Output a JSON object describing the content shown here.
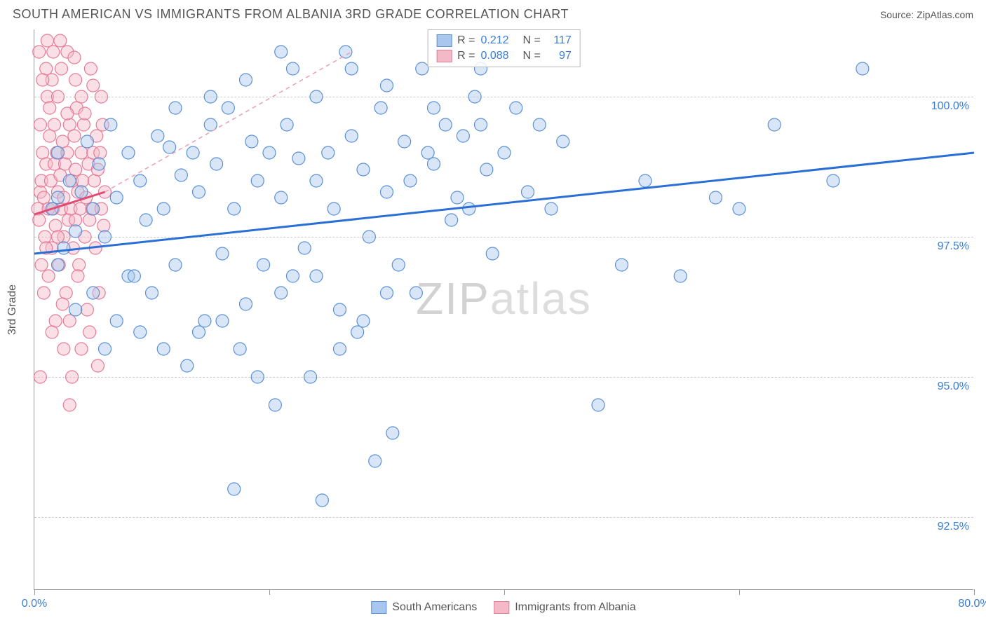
{
  "header": {
    "title": "SOUTH AMERICAN VS IMMIGRANTS FROM ALBANIA 3RD GRADE CORRELATION CHART",
    "source": "Source: ZipAtlas.com"
  },
  "chart": {
    "type": "scatter",
    "y_axis_label": "3rd Grade",
    "xlim": [
      0,
      80
    ],
    "ylim": [
      91.2,
      101.2
    ],
    "ytick_values": [
      92.5,
      95.0,
      97.5,
      100.0
    ],
    "ytick_labels": [
      "92.5%",
      "95.0%",
      "97.5%",
      "100.0%"
    ],
    "xtick_values": [
      0,
      20,
      40,
      60,
      80
    ],
    "xtick_labels": [
      "0.0%",
      "",
      "",
      "",
      "80.0%"
    ],
    "grid_color": "#cccccc",
    "axis_color": "#999999",
    "background_color": "#ffffff",
    "watermark": "ZIPatlas",
    "marker_radius": 9,
    "marker_opacity": 0.45,
    "series": [
      {
        "name": "South Americans",
        "color_fill": "#a9c7ee",
        "color_stroke": "#5a8fd6",
        "r_value": "0.212",
        "n_value": "117",
        "regression": {
          "x1": 0,
          "y1": 97.2,
          "x2": 80,
          "y2": 99.0,
          "stroke": "#2a6fd6",
          "width": 3,
          "dash": ""
        },
        "extrapolation": null,
        "points": [
          [
            1.5,
            98.0
          ],
          [
            2.0,
            98.2
          ],
          [
            2.5,
            97.3
          ],
          [
            2.0,
            99.0
          ],
          [
            3.0,
            98.5
          ],
          [
            3.5,
            97.6
          ],
          [
            4.0,
            98.3
          ],
          [
            4.5,
            99.2
          ],
          [
            2.0,
            97.0
          ],
          [
            5.0,
            98.0
          ],
          [
            5.5,
            98.8
          ],
          [
            6.0,
            97.5
          ],
          [
            6.5,
            99.5
          ],
          [
            7.0,
            98.2
          ],
          [
            8.0,
            96.8
          ],
          [
            8.0,
            99.0
          ],
          [
            9.0,
            98.5
          ],
          [
            9.5,
            97.8
          ],
          [
            10.0,
            96.5
          ],
          [
            10.5,
            99.3
          ],
          [
            11.0,
            98.0
          ],
          [
            11.5,
            99.1
          ],
          [
            12.0,
            97.0
          ],
          [
            12.5,
            98.6
          ],
          [
            13.0,
            95.2
          ],
          [
            13.5,
            99.0
          ],
          [
            14.0,
            98.3
          ],
          [
            14.5,
            96.0
          ],
          [
            15.0,
            99.5
          ],
          [
            15.5,
            98.8
          ],
          [
            16.0,
            97.2
          ],
          [
            16.5,
            99.8
          ],
          [
            17.0,
            98.0
          ],
          [
            17.5,
            95.5
          ],
          [
            18.0,
            96.3
          ],
          [
            18.5,
            99.2
          ],
          [
            19.0,
            98.5
          ],
          [
            19.5,
            97.0
          ],
          [
            20.0,
            99.0
          ],
          [
            20.5,
            94.5
          ],
          [
            21.0,
            98.2
          ],
          [
            21.5,
            99.5
          ],
          [
            22.0,
            96.8
          ],
          [
            22.5,
            98.9
          ],
          [
            23.0,
            97.3
          ],
          [
            23.5,
            95.0
          ],
          [
            24.0,
            98.5
          ],
          [
            24.5,
            92.8
          ],
          [
            25.0,
            99.0
          ],
          [
            25.5,
            98.0
          ],
          [
            26.0,
            96.2
          ],
          [
            26.5,
            100.8
          ],
          [
            27.0,
            99.3
          ],
          [
            27.5,
            95.8
          ],
          [
            28.0,
            98.7
          ],
          [
            28.5,
            97.5
          ],
          [
            29.0,
            93.5
          ],
          [
            29.5,
            99.8
          ],
          [
            30.0,
            98.3
          ],
          [
            30.5,
            94.0
          ],
          [
            31.0,
            97.0
          ],
          [
            31.5,
            99.2
          ],
          [
            32.0,
            98.5
          ],
          [
            32.5,
            96.5
          ],
          [
            33.0,
            100.5
          ],
          [
            33.5,
            99.0
          ],
          [
            34.0,
            98.8
          ],
          [
            17.0,
            93.0
          ],
          [
            35.0,
            99.5
          ],
          [
            35.5,
            97.8
          ],
          [
            36.0,
            98.2
          ],
          [
            36.5,
            99.3
          ],
          [
            37.0,
            98.0
          ],
          [
            37.5,
            100.0
          ],
          [
            38.0,
            99.5
          ],
          [
            38.5,
            98.7
          ],
          [
            39.0,
            97.2
          ],
          [
            40.0,
            99.0
          ],
          [
            41.0,
            99.8
          ],
          [
            42.0,
            98.3
          ],
          [
            43.0,
            99.5
          ],
          [
            44.0,
            98.0
          ],
          [
            45.0,
            99.2
          ],
          [
            22.0,
            100.5
          ],
          [
            48.0,
            94.5
          ],
          [
            50.0,
            97.0
          ],
          [
            52.0,
            98.5
          ],
          [
            55.0,
            96.8
          ],
          [
            58.0,
            98.2
          ],
          [
            60.0,
            98.0
          ],
          [
            63.0,
            99.5
          ],
          [
            68.0,
            98.5
          ],
          [
            11.0,
            95.5
          ],
          [
            14.0,
            95.8
          ],
          [
            16.0,
            96.0
          ],
          [
            19.0,
            95.0
          ],
          [
            21.0,
            96.5
          ],
          [
            24.0,
            96.8
          ],
          [
            26.0,
            95.5
          ],
          [
            28.0,
            96.0
          ],
          [
            30.0,
            96.5
          ],
          [
            5.0,
            96.5
          ],
          [
            7.0,
            96.0
          ],
          [
            9.0,
            95.8
          ],
          [
            70.5,
            100.5
          ],
          [
            3.5,
            96.2
          ],
          [
            6.0,
            95.5
          ],
          [
            8.5,
            96.8
          ],
          [
            12.0,
            99.8
          ],
          [
            15.0,
            100.0
          ],
          [
            18.0,
            100.3
          ],
          [
            21.0,
            100.8
          ],
          [
            24.0,
            100.0
          ],
          [
            27.0,
            100.5
          ],
          [
            30.0,
            100.2
          ],
          [
            34.0,
            99.8
          ],
          [
            38.0,
            100.5
          ]
        ]
      },
      {
        "name": "Immigrants from Albania",
        "color_fill": "#f4b9c7",
        "color_stroke": "#e67a96",
        "r_value": "0.088",
        "n_value": "97",
        "regression": {
          "x1": 0,
          "y1": 97.9,
          "x2": 6,
          "y2": 98.3,
          "stroke": "#e14b73",
          "width": 3,
          "dash": ""
        },
        "extrapolation": {
          "x1": 6,
          "y1": 98.3,
          "x2": 27,
          "y2": 100.8,
          "stroke": "#e9a0b3",
          "width": 1.5,
          "dash": "6,5"
        },
        "points": [
          [
            0.3,
            98.0
          ],
          [
            0.5,
            98.3
          ],
          [
            0.4,
            97.8
          ],
          [
            0.6,
            98.5
          ],
          [
            0.7,
            99.0
          ],
          [
            0.8,
            98.2
          ],
          [
            0.5,
            99.5
          ],
          [
            0.9,
            97.5
          ],
          [
            1.0,
            98.8
          ],
          [
            1.1,
            100.0
          ],
          [
            0.6,
            97.0
          ],
          [
            1.2,
            98.0
          ],
          [
            1.3,
            99.3
          ],
          [
            1.0,
            100.5
          ],
          [
            1.4,
            98.5
          ],
          [
            1.5,
            97.3
          ],
          [
            1.3,
            99.8
          ],
          [
            1.6,
            98.0
          ],
          [
            1.7,
            98.8
          ],
          [
            1.5,
            100.3
          ],
          [
            1.8,
            97.7
          ],
          [
            1.9,
            99.0
          ],
          [
            2.0,
            98.3
          ],
          [
            1.7,
            99.5
          ],
          [
            2.1,
            97.0
          ],
          [
            2.2,
            98.6
          ],
          [
            2.0,
            100.0
          ],
          [
            2.3,
            98.0
          ],
          [
            2.4,
            99.2
          ],
          [
            2.5,
            97.5
          ],
          [
            2.3,
            100.5
          ],
          [
            2.6,
            98.8
          ],
          [
            2.7,
            96.5
          ],
          [
            2.8,
            99.0
          ],
          [
            2.5,
            98.2
          ],
          [
            2.9,
            97.8
          ],
          [
            3.0,
            99.5
          ],
          [
            3.1,
            98.0
          ],
          [
            2.8,
            100.8
          ],
          [
            3.2,
            98.5
          ],
          [
            3.3,
            97.3
          ],
          [
            3.4,
            99.3
          ],
          [
            3.0,
            96.0
          ],
          [
            3.5,
            98.7
          ],
          [
            3.6,
            99.8
          ],
          [
            3.7,
            98.3
          ],
          [
            3.5,
            100.3
          ],
          [
            3.8,
            97.0
          ],
          [
            3.9,
            98.0
          ],
          [
            4.0,
            99.0
          ],
          [
            3.7,
            96.8
          ],
          [
            4.1,
            98.5
          ],
          [
            4.2,
            99.5
          ],
          [
            4.0,
            100.0
          ],
          [
            4.3,
            97.5
          ],
          [
            4.4,
            98.2
          ],
          [
            4.5,
            96.2
          ],
          [
            4.6,
            98.8
          ],
          [
            4.3,
            99.7
          ],
          [
            4.7,
            97.8
          ],
          [
            4.8,
            100.5
          ],
          [
            4.9,
            98.0
          ],
          [
            5.0,
            99.0
          ],
          [
            4.7,
            95.8
          ],
          [
            5.1,
            98.5
          ],
          [
            5.2,
            97.3
          ],
          [
            5.3,
            99.3
          ],
          [
            5.0,
            100.2
          ],
          [
            5.4,
            98.7
          ],
          [
            5.5,
            96.5
          ],
          [
            5.6,
            99.0
          ],
          [
            5.7,
            98.0
          ],
          [
            5.4,
            95.2
          ],
          [
            5.8,
            99.5
          ],
          [
            5.9,
            97.7
          ],
          [
            6.0,
            98.3
          ],
          [
            5.7,
            100.0
          ],
          [
            3.0,
            94.5
          ],
          [
            0.8,
            96.5
          ],
          [
            1.2,
            96.8
          ],
          [
            1.8,
            96.0
          ],
          [
            2.4,
            96.3
          ],
          [
            3.2,
            95.0
          ],
          [
            4.0,
            95.5
          ],
          [
            0.5,
            95.0
          ],
          [
            1.0,
            97.3
          ],
          [
            2.0,
            97.5
          ],
          [
            3.5,
            97.8
          ],
          [
            2.5,
            95.5
          ],
          [
            1.5,
            95.8
          ],
          [
            0.4,
            100.8
          ],
          [
            0.7,
            100.3
          ],
          [
            1.1,
            101.0
          ],
          [
            1.6,
            100.8
          ],
          [
            2.2,
            101.0
          ],
          [
            2.8,
            99.7
          ],
          [
            3.4,
            100.7
          ]
        ]
      }
    ],
    "legend_top": {
      "rows": [
        {
          "swatch_fill": "#a9c7ee",
          "swatch_stroke": "#5a8fd6",
          "r_label": "R =",
          "r_value": "0.212",
          "n_label": "N =",
          "n_value": "117"
        },
        {
          "swatch_fill": "#f4b9c7",
          "swatch_stroke": "#e67a96",
          "r_label": "R =",
          "r_value": "0.088",
          "n_label": "N =",
          "n_value": "97"
        }
      ]
    },
    "legend_bottom": [
      {
        "swatch_fill": "#a9c7ee",
        "swatch_stroke": "#5a8fd6",
        "label": "South Americans"
      },
      {
        "swatch_fill": "#f4b9c7",
        "swatch_stroke": "#e67a96",
        "label": "Immigrants from Albania"
      }
    ]
  }
}
